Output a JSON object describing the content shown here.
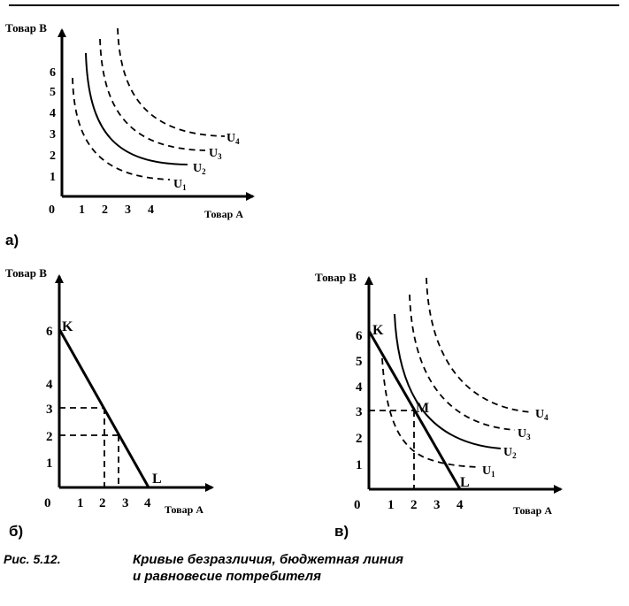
{
  "top_rule": true,
  "panel_a": {
    "label": "а)",
    "y_axis_label": "Товар В",
    "x_axis_label": "Товар А",
    "y_ticks": [
      "1",
      "2",
      "3",
      "4",
      "5",
      "6"
    ],
    "x_ticks": [
      "0",
      "1",
      "2",
      "3",
      "4"
    ],
    "curves": [
      {
        "name": "U",
        "sub": "1",
        "style": "dashed"
      },
      {
        "name": "U",
        "sub": "2",
        "style": "solid"
      },
      {
        "name": "U",
        "sub": "3",
        "style": "dashed"
      },
      {
        "name": "U",
        "sub": "4",
        "style": "dashed"
      }
    ]
  },
  "panel_b": {
    "label": "б)",
    "y_axis_label": "Товар В",
    "x_axis_label": "Товар А",
    "y_ticks": [
      "1",
      "2",
      "3",
      "4",
      "6"
    ],
    "x_ticks": [
      "0",
      "1",
      "2",
      "3",
      "4"
    ],
    "point_k": "K",
    "point_l": "L"
  },
  "panel_c": {
    "label": "в)",
    "y_axis_label": "Товар В",
    "x_axis_label": "Товар А",
    "y_ticks": [
      "1",
      "2",
      "3",
      "4",
      "5",
      "6"
    ],
    "x_ticks": [
      "0",
      "1",
      "2",
      "3",
      "4"
    ],
    "point_k": "K",
    "point_l": "L",
    "point_m": "M",
    "curves": [
      {
        "name": "U",
        "sub": "1",
        "style": "dashed"
      },
      {
        "name": "U",
        "sub": "2",
        "style": "solid"
      },
      {
        "name": "U",
        "sub": "3",
        "style": "dashed"
      },
      {
        "name": "U",
        "sub": "4",
        "style": "dashed"
      }
    ]
  },
  "caption": {
    "number": "Рис. 5.12.",
    "line1": "Кривые безразличия, бюджетная линия",
    "line2": "и равновесие потребителя"
  }
}
